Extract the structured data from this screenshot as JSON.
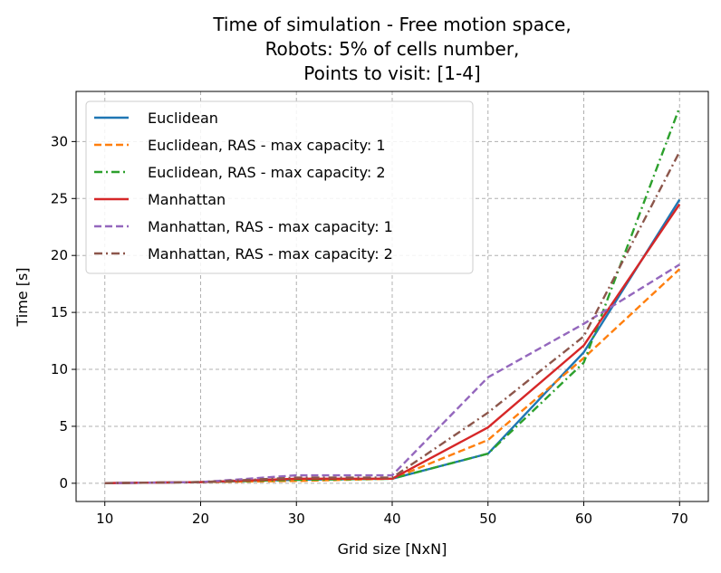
{
  "chart_data": {
    "type": "line",
    "title_lines": [
      "Time of simulation - Free motion space,",
      "Robots: 5% of cells number,",
      "Points to visit: [1-4]"
    ],
    "xlabel": "Grid size [NxN]",
    "ylabel": "Time [s]",
    "x": [
      10,
      20,
      30,
      40,
      50,
      60,
      70
    ],
    "xticks": [
      10,
      20,
      30,
      40,
      50,
      60,
      70
    ],
    "yticks": [
      0,
      5,
      10,
      15,
      20,
      25,
      30
    ],
    "xlim": [
      7,
      73
    ],
    "ylim": [
      -1.6,
      34.4
    ],
    "grid": true,
    "legend_position": "upper-left",
    "series": [
      {
        "name": "Euclidean",
        "color": "#1f77b4",
        "style": "solid",
        "values": [
          0.01,
          0.1,
          0.3,
          0.4,
          2.6,
          11.5,
          24.9
        ]
      },
      {
        "name": "Euclidean, RAS - max capacity: 1",
        "color": "#ff7f0e",
        "style": "dashed",
        "values": [
          0.01,
          0.1,
          0.2,
          0.4,
          3.8,
          11.0,
          18.8
        ]
      },
      {
        "name": "Euclidean, RAS - max capacity: 2",
        "color": "#2ca02c",
        "style": "dashdot",
        "values": [
          0.01,
          0.1,
          0.3,
          0.4,
          2.6,
          10.6,
          33.0
        ]
      },
      {
        "name": "Manhattan",
        "color": "#d62728",
        "style": "solid",
        "values": [
          0.01,
          0.1,
          0.4,
          0.4,
          4.9,
          12.1,
          24.5
        ]
      },
      {
        "name": "Manhattan, RAS - max capacity: 1",
        "color": "#9467bd",
        "style": "dashed",
        "values": [
          0.01,
          0.1,
          0.7,
          0.7,
          9.3,
          14.0,
          19.2
        ]
      },
      {
        "name": "Manhattan, RAS - max capacity: 2",
        "color": "#8c564b",
        "style": "dashdot",
        "values": [
          0.01,
          0.1,
          0.5,
          0.5,
          6.2,
          12.9,
          29.1
        ]
      }
    ]
  }
}
